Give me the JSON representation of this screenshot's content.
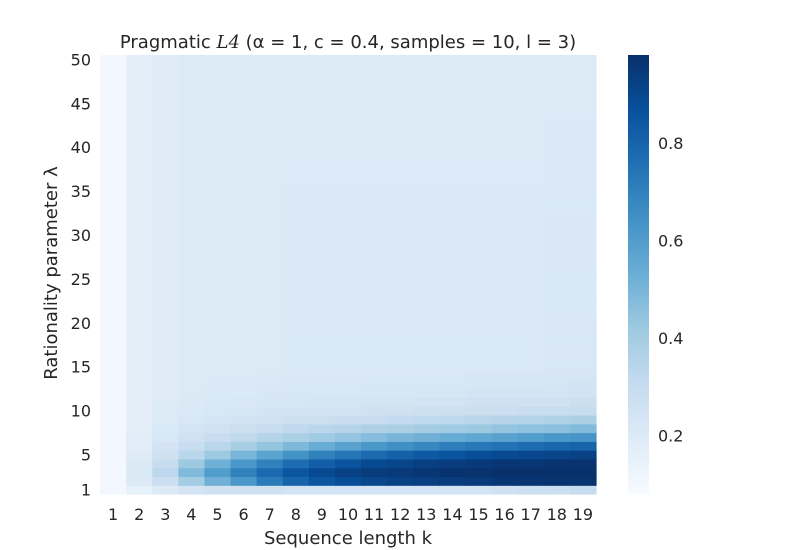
{
  "chart_data": {
    "type": "heatmap",
    "title": "Pragmatic ",
    "title_math": "L4",
    "title_params": " (α = 1, c = 0.4, samples = 10, l = 3)",
    "xlabel": "Sequence length k",
    "ylabel": "Rationality parameter λ",
    "x": [
      1,
      2,
      3,
      4,
      5,
      6,
      7,
      8,
      9,
      10,
      11,
      12,
      13,
      14,
      15,
      16,
      17,
      18,
      19
    ],
    "x_tick_labels": [
      "1",
      "2",
      "3",
      "4",
      "5",
      "6",
      "7",
      "8",
      "9",
      "10",
      "11",
      "12",
      "13",
      "14",
      "15",
      "16",
      "17",
      "18",
      "19"
    ],
    "y_range": [
      1,
      50
    ],
    "y_tick_values": [
      1,
      5,
      10,
      15,
      20,
      25,
      30,
      35,
      40,
      45,
      50
    ],
    "y_tick_labels": [
      "1",
      "5",
      "10",
      "15",
      "20",
      "25",
      "30",
      "35",
      "40",
      "45",
      "50"
    ],
    "colormap": "Blues",
    "colormap_stops": [
      "#f7fbff",
      "#deebf7",
      "#c6dbef",
      "#9ecae1",
      "#6baed6",
      "#4292c6",
      "#2171b5",
      "#08519c",
      "#08306b"
    ],
    "vmin": 0.08,
    "vmax": 0.98,
    "colorbar_ticks": [
      0.2,
      0.4,
      0.6,
      0.8
    ],
    "colorbar_tick_labels": [
      "0.2",
      "0.4",
      "0.6",
      "0.8"
    ],
    "grid": false,
    "rows": [
      {
        "lambda": 1,
        "values": [
          0.1,
          0.15,
          0.2,
          0.24,
          0.26,
          0.26,
          0.26,
          0.25,
          0.25,
          0.24,
          0.24,
          0.24,
          0.24,
          0.25,
          0.25,
          0.26,
          0.27,
          0.28,
          0.3
        ]
      },
      {
        "lambda": 2,
        "values": [
          0.1,
          0.2,
          0.28,
          0.4,
          0.52,
          0.62,
          0.72,
          0.8,
          0.85,
          0.88,
          0.9,
          0.92,
          0.93,
          0.94,
          0.95,
          0.96,
          0.96,
          0.97,
          0.97
        ]
      },
      {
        "lambda": 3,
        "values": [
          0.1,
          0.21,
          0.33,
          0.48,
          0.6,
          0.7,
          0.78,
          0.85,
          0.89,
          0.92,
          0.94,
          0.95,
          0.96,
          0.97,
          0.97,
          0.98,
          0.98,
          0.98,
          0.98
        ]
      },
      {
        "lambda": 4,
        "values": [
          0.1,
          0.2,
          0.3,
          0.42,
          0.52,
          0.62,
          0.7,
          0.77,
          0.82,
          0.86,
          0.89,
          0.91,
          0.93,
          0.94,
          0.95,
          0.96,
          0.96,
          0.97,
          0.97
        ]
      },
      {
        "lambda": 5,
        "values": [
          0.1,
          0.19,
          0.26,
          0.34,
          0.42,
          0.5,
          0.57,
          0.64,
          0.7,
          0.74,
          0.78,
          0.81,
          0.84,
          0.86,
          0.88,
          0.89,
          0.9,
          0.91,
          0.92
        ]
      },
      {
        "lambda": 6,
        "values": [
          0.1,
          0.18,
          0.24,
          0.29,
          0.34,
          0.39,
          0.44,
          0.49,
          0.54,
          0.58,
          0.62,
          0.65,
          0.68,
          0.71,
          0.73,
          0.75,
          0.77,
          0.79,
          0.8
        ]
      },
      {
        "lambda": 7,
        "values": [
          0.1,
          0.18,
          0.22,
          0.26,
          0.29,
          0.32,
          0.35,
          0.38,
          0.41,
          0.44,
          0.47,
          0.5,
          0.52,
          0.54,
          0.56,
          0.58,
          0.6,
          0.62,
          0.63
        ]
      },
      {
        "lambda": 8,
        "values": [
          0.1,
          0.17,
          0.21,
          0.24,
          0.26,
          0.28,
          0.3,
          0.32,
          0.34,
          0.35,
          0.37,
          0.38,
          0.4,
          0.41,
          0.42,
          0.44,
          0.45,
          0.46,
          0.48
        ]
      },
      {
        "lambda": 9,
        "values": [
          0.1,
          0.17,
          0.2,
          0.22,
          0.24,
          0.25,
          0.26,
          0.27,
          0.28,
          0.29,
          0.3,
          0.31,
          0.32,
          0.33,
          0.34,
          0.35,
          0.36,
          0.37,
          0.38
        ]
      },
      {
        "lambda": 10,
        "values": [
          0.1,
          0.17,
          0.2,
          0.21,
          0.22,
          0.23,
          0.24,
          0.24,
          0.25,
          0.25,
          0.26,
          0.26,
          0.27,
          0.27,
          0.28,
          0.28,
          0.29,
          0.29,
          0.3
        ]
      },
      {
        "lambda": 12,
        "values": [
          0.1,
          0.17,
          0.19,
          0.2,
          0.21,
          0.21,
          0.22,
          0.22,
          0.22,
          0.22,
          0.23,
          0.23,
          0.23,
          0.23,
          0.24,
          0.24,
          0.24,
          0.24,
          0.25
        ]
      },
      {
        "lambda": 15,
        "values": [
          0.1,
          0.17,
          0.19,
          0.2,
          0.2,
          0.2,
          0.2,
          0.21,
          0.21,
          0.21,
          0.21,
          0.21,
          0.21,
          0.21,
          0.21,
          0.21,
          0.21,
          0.22,
          0.22
        ]
      },
      {
        "lambda": 50,
        "values": [
          0.1,
          0.17,
          0.19,
          0.2,
          0.2,
          0.2,
          0.2,
          0.2,
          0.2,
          0.2,
          0.2,
          0.2,
          0.2,
          0.2,
          0.2,
          0.2,
          0.2,
          0.2,
          0.2
        ]
      }
    ]
  }
}
